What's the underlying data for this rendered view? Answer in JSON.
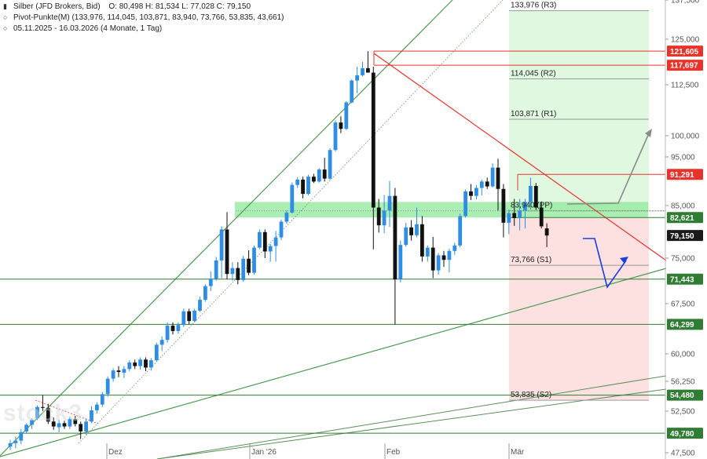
{
  "header": {
    "title": "Silber (JFD Brokers, Bid)",
    "ohlc": "O: 80,498  H: 81,534  L: 77,028  C: 79,150",
    "pivot": "Pivot-Punkte(M) (133,976, 114,045, 103,871, 83,940, 73,766, 53,835, 43,661)",
    "range": "05.11.2025 - 16.03.2026  (4 Monate, 1 Tag)"
  },
  "watermark": "stock3",
  "colors": {
    "up": "#2f8ee3",
    "down": "#111111",
    "red_level": "#e8332b",
    "green_level": "#2e7d32",
    "dark_badge": "#1a1a1a",
    "zone_green": "#8fe89a",
    "zone_pink": "#fde0e0",
    "zone_lightgreen": "#dff8df",
    "arrow_grey": "#8a8a8a",
    "arrow_blue": "#1a3ee0",
    "pivot_line": "#555555"
  },
  "chart_data": {
    "type": "candlestick",
    "x_ticks": [
      "Dez",
      "Jan '26",
      "Feb",
      "Mär"
    ],
    "y_ticks": [
      "137,500",
      "125,000",
      "112,500",
      "100,000",
      "95,000",
      "85,000",
      "75,000",
      "67,500",
      "60,000",
      "56,250",
      "52,500",
      "47,500"
    ],
    "ylim": [
      47.5,
      137.5
    ],
    "scale": "log",
    "pivots": [
      {
        "label": "133,976 (R3)",
        "value": 133.976
      },
      {
        "label": "114,045 (R2)",
        "value": 114.045
      },
      {
        "label": "103,871 (R1)",
        "value": 103.871
      },
      {
        "label": "83,940 (PP)",
        "value": 83.94
      },
      {
        "label": "73,766 (S1)",
        "value": 73.766
      },
      {
        "label": "53,835 (S2)",
        "value": 53.835
      }
    ],
    "levels": [
      {
        "label": "121,605",
        "value": 121.605,
        "kind": "red"
      },
      {
        "label": "117,697",
        "value": 117.697,
        "kind": "red"
      },
      {
        "label": "91,291",
        "value": 91.291,
        "kind": "red"
      },
      {
        "label": "82,621",
        "value": 82.621,
        "kind": "green"
      },
      {
        "label": "79,150",
        "value": 79.15,
        "kind": "current"
      },
      {
        "label": "71,443",
        "value": 71.443,
        "kind": "green"
      },
      {
        "label": "64,299",
        "value": 64.299,
        "kind": "green"
      },
      {
        "label": "54,480",
        "value": 54.48,
        "kind": "green"
      },
      {
        "label": "49,780",
        "value": 49.78,
        "kind": "green"
      }
    ],
    "candles": [
      {
        "o": 48.2,
        "h": 49.0,
        "l": 47.8,
        "c": 48.6
      },
      {
        "o": 48.6,
        "h": 49.4,
        "l": 48.0,
        "c": 48.9
      },
      {
        "o": 48.9,
        "h": 50.3,
        "l": 48.5,
        "c": 49.9
      },
      {
        "o": 50.0,
        "h": 51.0,
        "l": 49.7,
        "c": 50.8
      },
      {
        "o": 50.8,
        "h": 51.6,
        "l": 50.3,
        "c": 51.4
      },
      {
        "o": 51.6,
        "h": 53.2,
        "l": 51.4,
        "c": 53.0
      },
      {
        "o": 53.0,
        "h": 54.5,
        "l": 52.5,
        "c": 52.9
      },
      {
        "o": 52.9,
        "h": 53.4,
        "l": 50.9,
        "c": 51.2
      },
      {
        "o": 51.2,
        "h": 51.7,
        "l": 50.2,
        "c": 50.6
      },
      {
        "o": 50.5,
        "h": 51.4,
        "l": 49.9,
        "c": 51.0
      },
      {
        "o": 51.0,
        "h": 51.3,
        "l": 50.3,
        "c": 50.6
      },
      {
        "o": 50.6,
        "h": 51.8,
        "l": 50.3,
        "c": 51.5
      },
      {
        "o": 51.5,
        "h": 51.9,
        "l": 50.6,
        "c": 50.9
      },
      {
        "o": 50.9,
        "h": 51.2,
        "l": 49.1,
        "c": 50.0
      },
      {
        "o": 50.0,
        "h": 51.6,
        "l": 49.6,
        "c": 51.2
      },
      {
        "o": 51.2,
        "h": 53.1,
        "l": 51.0,
        "c": 52.6
      },
      {
        "o": 52.6,
        "h": 53.6,
        "l": 52.2,
        "c": 53.3
      },
      {
        "o": 53.3,
        "h": 54.9,
        "l": 53.0,
        "c": 54.6
      },
      {
        "o": 54.6,
        "h": 56.9,
        "l": 54.3,
        "c": 56.6
      },
      {
        "o": 56.6,
        "h": 58.0,
        "l": 56.2,
        "c": 57.7
      },
      {
        "o": 57.7,
        "h": 58.3,
        "l": 56.8,
        "c": 57.5
      },
      {
        "o": 57.4,
        "h": 58.3,
        "l": 56.7,
        "c": 57.9
      },
      {
        "o": 57.9,
        "h": 59.1,
        "l": 57.6,
        "c": 58.8
      },
      {
        "o": 58.8,
        "h": 59.2,
        "l": 57.9,
        "c": 58.3
      },
      {
        "o": 58.3,
        "h": 59.5,
        "l": 57.8,
        "c": 59.2
      },
      {
        "o": 59.2,
        "h": 59.5,
        "l": 57.6,
        "c": 58.1
      },
      {
        "o": 58.1,
        "h": 59.4,
        "l": 57.7,
        "c": 59.1
      },
      {
        "o": 59.1,
        "h": 61.6,
        "l": 58.9,
        "c": 61.3
      },
      {
        "o": 61.3,
        "h": 62.5,
        "l": 60.4,
        "c": 62.0
      },
      {
        "o": 62.0,
        "h": 64.6,
        "l": 61.6,
        "c": 64.1
      },
      {
        "o": 64.1,
        "h": 64.6,
        "l": 62.8,
        "c": 63.3
      },
      {
        "o": 63.3,
        "h": 64.6,
        "l": 62.9,
        "c": 64.2
      },
      {
        "o": 64.2,
        "h": 66.7,
        "l": 63.9,
        "c": 66.3
      },
      {
        "o": 66.3,
        "h": 66.7,
        "l": 64.3,
        "c": 64.8
      },
      {
        "o": 64.8,
        "h": 66.7,
        "l": 64.6,
        "c": 66.4
      },
      {
        "o": 66.4,
        "h": 68.6,
        "l": 66.2,
        "c": 68.1
      },
      {
        "o": 68.1,
        "h": 70.6,
        "l": 67.8,
        "c": 70.3
      },
      {
        "o": 70.3,
        "h": 72.7,
        "l": 69.5,
        "c": 71.5
      },
      {
        "o": 71.5,
        "h": 75.2,
        "l": 71.2,
        "c": 74.6
      },
      {
        "o": 74.6,
        "h": 80.9,
        "l": 71.6,
        "c": 80.3
      },
      {
        "o": 80.3,
        "h": 83.7,
        "l": 71.4,
        "c": 72.3
      },
      {
        "o": 72.3,
        "h": 74.3,
        "l": 71.2,
        "c": 73.3
      },
      {
        "o": 73.3,
        "h": 74.3,
        "l": 70.6,
        "c": 71.3
      },
      {
        "o": 71.3,
        "h": 75.4,
        "l": 71.0,
        "c": 74.9
      },
      {
        "o": 74.9,
        "h": 76.4,
        "l": 72.1,
        "c": 72.5
      },
      {
        "o": 72.5,
        "h": 77.3,
        "l": 72.2,
        "c": 76.9
      },
      {
        "o": 76.9,
        "h": 80.3,
        "l": 76.6,
        "c": 79.8
      },
      {
        "o": 79.8,
        "h": 80.3,
        "l": 75.0,
        "c": 76.2
      },
      {
        "o": 76.2,
        "h": 77.6,
        "l": 74.4,
        "c": 77.2
      },
      {
        "o": 77.2,
        "h": 80.0,
        "l": 74.4,
        "c": 78.8
      },
      {
        "o": 78.8,
        "h": 82.2,
        "l": 78.3,
        "c": 81.8
      },
      {
        "o": 81.8,
        "h": 84.0,
        "l": 81.4,
        "c": 83.6
      },
      {
        "o": 83.6,
        "h": 89.6,
        "l": 83.4,
        "c": 89.1
      },
      {
        "o": 89.1,
        "h": 90.7,
        "l": 88.5,
        "c": 90.2
      },
      {
        "o": 90.2,
        "h": 90.8,
        "l": 86.4,
        "c": 87.3
      },
      {
        "o": 87.3,
        "h": 91.2,
        "l": 87.0,
        "c": 90.8
      },
      {
        "o": 90.8,
        "h": 91.4,
        "l": 89.5,
        "c": 89.8
      },
      {
        "o": 89.8,
        "h": 92.6,
        "l": 89.6,
        "c": 92.3
      },
      {
        "o": 92.3,
        "h": 94.8,
        "l": 89.8,
        "c": 90.4
      },
      {
        "o": 90.4,
        "h": 97.0,
        "l": 90.2,
        "c": 96.6
      },
      {
        "o": 96.6,
        "h": 103.6,
        "l": 96.3,
        "c": 103.1
      },
      {
        "o": 103.1,
        "h": 104.6,
        "l": 100.6,
        "c": 101.6
      },
      {
        "o": 101.6,
        "h": 108.3,
        "l": 101.3,
        "c": 108.0
      },
      {
        "o": 108.0,
        "h": 113.9,
        "l": 107.8,
        "c": 113.6
      },
      {
        "o": 113.6,
        "h": 117.3,
        "l": 110.3,
        "c": 115.0
      },
      {
        "o": 115.0,
        "h": 118.6,
        "l": 114.7,
        "c": 116.9
      },
      {
        "o": 116.9,
        "h": 121.6,
        "l": 116.3,
        "c": 115.7
      },
      {
        "o": 115.7,
        "h": 117.3,
        "l": 76.6,
        "c": 84.6
      },
      {
        "o": 84.6,
        "h": 86.3,
        "l": 79.7,
        "c": 81.1
      },
      {
        "o": 81.1,
        "h": 87.1,
        "l": 79.6,
        "c": 84.0
      },
      {
        "o": 84.0,
        "h": 89.9,
        "l": 80.8,
        "c": 86.9
      },
      {
        "o": 86.9,
        "h": 88.5,
        "l": 64.3,
        "c": 71.4
      },
      {
        "o": 71.4,
        "h": 78.2,
        "l": 70.9,
        "c": 77.4
      },
      {
        "o": 77.4,
        "h": 81.6,
        "l": 77.1,
        "c": 80.7
      },
      {
        "o": 80.7,
        "h": 82.1,
        "l": 78.2,
        "c": 79.2
      },
      {
        "o": 79.2,
        "h": 84.6,
        "l": 78.8,
        "c": 81.3
      },
      {
        "o": 81.3,
        "h": 82.9,
        "l": 74.4,
        "c": 75.3
      },
      {
        "o": 75.3,
        "h": 77.3,
        "l": 74.4,
        "c": 76.9
      },
      {
        "o": 76.9,
        "h": 78.9,
        "l": 71.6,
        "c": 72.9
      },
      {
        "o": 72.9,
        "h": 75.9,
        "l": 72.2,
        "c": 75.5
      },
      {
        "o": 75.5,
        "h": 76.3,
        "l": 73.5,
        "c": 74.7
      },
      {
        "o": 74.7,
        "h": 76.7,
        "l": 72.6,
        "c": 76.3
      },
      {
        "o": 76.3,
        "h": 77.8,
        "l": 75.6,
        "c": 77.3
      },
      {
        "o": 77.3,
        "h": 83.4,
        "l": 77.0,
        "c": 82.9
      },
      {
        "o": 82.9,
        "h": 88.2,
        "l": 82.6,
        "c": 87.8
      },
      {
        "o": 87.8,
        "h": 89.3,
        "l": 86.1,
        "c": 86.9
      },
      {
        "o": 86.9,
        "h": 89.1,
        "l": 86.2,
        "c": 88.5
      },
      {
        "o": 88.5,
        "h": 90.2,
        "l": 87.0,
        "c": 89.8
      },
      {
        "o": 89.8,
        "h": 90.6,
        "l": 88.3,
        "c": 88.8
      },
      {
        "o": 88.8,
        "h": 93.6,
        "l": 88.6,
        "c": 92.7
      },
      {
        "o": 92.7,
        "h": 94.6,
        "l": 84.0,
        "c": 88.3
      },
      {
        "o": 88.3,
        "h": 89.3,
        "l": 78.8,
        "c": 81.6
      },
      {
        "o": 81.6,
        "h": 84.2,
        "l": 79.4,
        "c": 83.5
      },
      {
        "o": 83.5,
        "h": 86.3,
        "l": 81.0,
        "c": 82.5
      },
      {
        "o": 82.5,
        "h": 86.3,
        "l": 80.1,
        "c": 84.0
      },
      {
        "o": 84.0,
        "h": 86.3,
        "l": 80.5,
        "c": 85.7
      },
      {
        "o": 85.7,
        "h": 90.6,
        "l": 84.2,
        "c": 88.9
      },
      {
        "o": 88.9,
        "h": 89.5,
        "l": 84.1,
        "c": 84.6
      },
      {
        "o": 84.6,
        "h": 85.8,
        "l": 80.5,
        "c": 80.9
      },
      {
        "o": 80.5,
        "h": 81.5,
        "l": 77.0,
        "c": 79.15
      }
    ]
  }
}
